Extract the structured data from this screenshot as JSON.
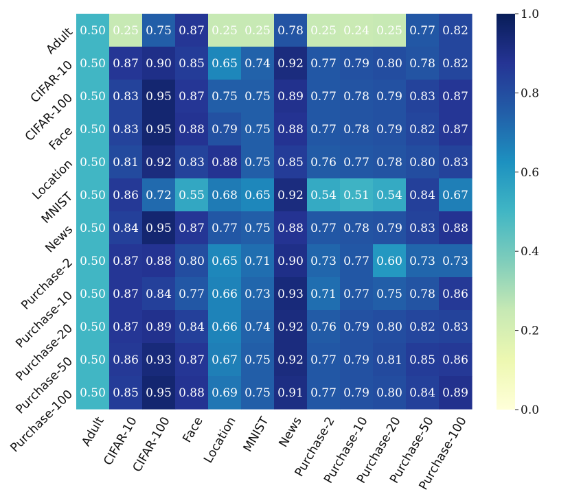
{
  "chart_data": {
    "type": "heatmap",
    "title": "",
    "xlabel": "",
    "ylabel": "",
    "row_labels": [
      "Adult",
      "CIFAR-10",
      "CIFAR-100",
      "Face",
      "Location",
      "MNIST",
      "News",
      "Purchase-2",
      "Purchase-10",
      "Purchase-20",
      "Purchase-50",
      "Purchase-100"
    ],
    "col_labels": [
      "Adult",
      "CIFAR-10",
      "CIFAR-100",
      "Face",
      "Location",
      "MNIST",
      "News",
      "Purchase-2",
      "Purchase-10",
      "Purchase-20",
      "Purchase-50",
      "Purchase-100"
    ],
    "values": [
      [
        0.5,
        0.25,
        0.75,
        0.87,
        0.25,
        0.25,
        0.78,
        0.25,
        0.24,
        0.25,
        0.77,
        0.82
      ],
      [
        0.5,
        0.87,
        0.9,
        0.85,
        0.65,
        0.74,
        0.92,
        0.77,
        0.79,
        0.8,
        0.78,
        0.82
      ],
      [
        0.5,
        0.83,
        0.95,
        0.87,
        0.75,
        0.75,
        0.89,
        0.77,
        0.78,
        0.79,
        0.83,
        0.87
      ],
      [
        0.5,
        0.83,
        0.95,
        0.88,
        0.79,
        0.75,
        0.88,
        0.77,
        0.78,
        0.79,
        0.82,
        0.87
      ],
      [
        0.5,
        0.81,
        0.92,
        0.83,
        0.88,
        0.75,
        0.85,
        0.76,
        0.77,
        0.78,
        0.8,
        0.83
      ],
      [
        0.5,
        0.86,
        0.72,
        0.55,
        0.68,
        0.65,
        0.92,
        0.54,
        0.51,
        0.54,
        0.84,
        0.67
      ],
      [
        0.5,
        0.84,
        0.95,
        0.87,
        0.77,
        0.75,
        0.88,
        0.77,
        0.78,
        0.79,
        0.83,
        0.88
      ],
      [
        0.5,
        0.87,
        0.88,
        0.8,
        0.65,
        0.71,
        0.9,
        0.73,
        0.77,
        0.6,
        0.73,
        0.73
      ],
      [
        0.5,
        0.87,
        0.84,
        0.77,
        0.66,
        0.73,
        0.93,
        0.71,
        0.77,
        0.75,
        0.78,
        0.86
      ],
      [
        0.5,
        0.87,
        0.89,
        0.84,
        0.66,
        0.74,
        0.92,
        0.76,
        0.79,
        0.8,
        0.82,
        0.83
      ],
      [
        0.5,
        0.86,
        0.93,
        0.87,
        0.67,
        0.75,
        0.92,
        0.77,
        0.79,
        0.81,
        0.85,
        0.86
      ],
      [
        0.5,
        0.85,
        0.95,
        0.88,
        0.69,
        0.75,
        0.91,
        0.77,
        0.79,
        0.8,
        0.84,
        0.89
      ]
    ],
    "value_range": [
      0.0,
      1.0
    ],
    "colormap": "YlGnBu",
    "colorbar_ticks": [
      "0.0",
      "0.2",
      "0.4",
      "0.6",
      "0.8",
      "1.0"
    ],
    "colorbar_stops": [
      "#ffffd9",
      "#edf8b1",
      "#c7e9b4",
      "#7fcdbb",
      "#41b6c4",
      "#1d91c0",
      "#225ea8",
      "#253494",
      "#081d58"
    ]
  }
}
